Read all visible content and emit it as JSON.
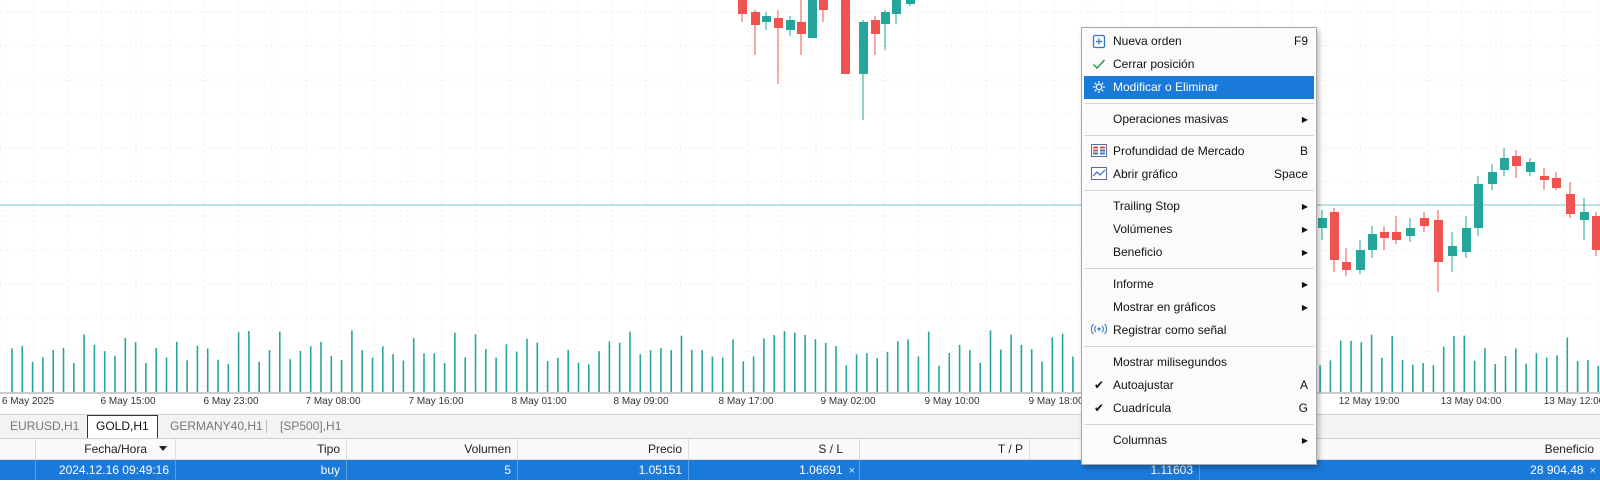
{
  "chart": {
    "x_axis_ticks": [
      "6 May 2025",
      "6 May 15:00",
      "6 May 23:00",
      "7 May 08:00",
      "7 May 16:00",
      "8 May 01:00",
      "8 May 09:00",
      "8 May 17:00",
      "9 May 02:00",
      "9 May 10:00",
      "9 May 18:00",
      "12 May 19:00",
      "13 May 04:00",
      "13 May 12:00"
    ],
    "colors": {
      "bull": "#26a69a",
      "bear": "#ef5350",
      "volume": "#26a69a",
      "price_line": "#7fbfc9",
      "grid": "#ececec"
    }
  },
  "tabs": [
    {
      "label": "EURUSD,H1",
      "active": false
    },
    {
      "label": "GOLD,H1",
      "active": true
    },
    {
      "label": "GERMANY40,H1",
      "active": false
    },
    {
      "label": "[SP500],H1",
      "active": false
    }
  ],
  "table": {
    "headers": {
      "time": "Fecha/Hora",
      "type": "Tipo",
      "volume": "Volumen",
      "price": "Precio",
      "sl": "S / L",
      "tp": "T / P",
      "profit": "Beneficio"
    },
    "sort_icon": "sort-descending-icon",
    "row": {
      "time": "2024.12.16 09:49:16",
      "type": "buy",
      "volume": "5",
      "price": "1.05151",
      "sl": "1.06691",
      "tp": "1.11603",
      "profit": "28 904.48",
      "remove_glyph": "×"
    }
  },
  "context_menu": {
    "items": [
      {
        "id": "nueva-orden",
        "label": "Nueva orden",
        "shortcut": "F9",
        "icon": "new-order-icon"
      },
      {
        "id": "cerrar-posicion",
        "label": "Cerrar posición",
        "icon": "checkmark-icon"
      },
      {
        "id": "modificar",
        "label": "Modificar o Eliminar",
        "icon": "gear-icon",
        "highlighted": true
      },
      {
        "id": "operaciones-masivas",
        "label": "Operaciones masivas",
        "submenu": true
      },
      {
        "id": "profundidad",
        "label": "Profundidad de Mercado",
        "shortcut": "B",
        "icon": "market-depth-icon"
      },
      {
        "id": "abrir-grafico",
        "label": "Abrir gráfico",
        "shortcut": "Space",
        "icon": "line-chart-icon"
      },
      {
        "id": "trailing-stop",
        "label": "Trailing Stop",
        "submenu": true
      },
      {
        "id": "volumenes",
        "label": "Volúmenes",
        "submenu": true
      },
      {
        "id": "beneficio",
        "label": "Beneficio",
        "submenu": true
      },
      {
        "id": "informe",
        "label": "Informe",
        "submenu": true
      },
      {
        "id": "mostrar-graficos",
        "label": "Mostrar en gráficos",
        "submenu": true
      },
      {
        "id": "registrar-senal",
        "label": "Registrar como señal",
        "icon": "signal-icon"
      },
      {
        "id": "milisegundos",
        "label": "Mostrar milisegundos"
      },
      {
        "id": "autoajustar",
        "label": "Autoajustar",
        "shortcut": "A",
        "checked": true
      },
      {
        "id": "cuadricula",
        "label": "Cuadrícula",
        "shortcut": "G",
        "checked": true
      },
      {
        "id": "columnas",
        "label": "Columnas",
        "submenu": true
      }
    ],
    "check_glyph": "✔",
    "submenu_glyph": "▶"
  }
}
